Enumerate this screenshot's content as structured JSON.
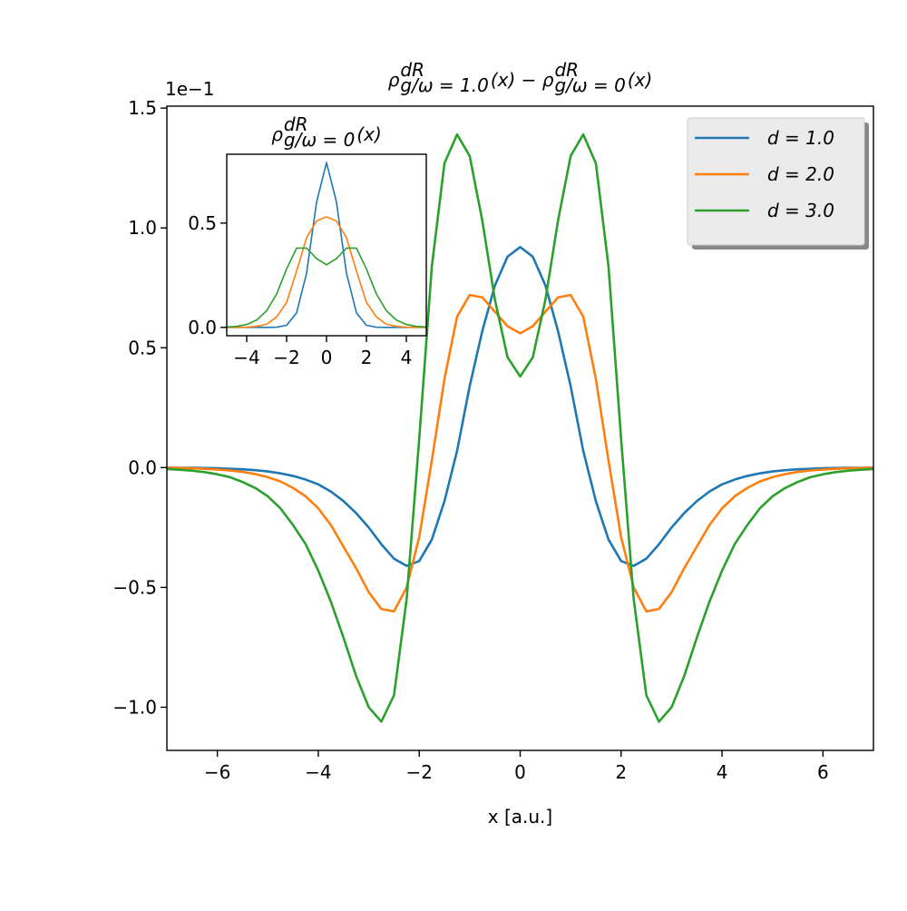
{
  "chart_data": [
    {
      "type": "line",
      "title": [
        {
          "base": "ρ",
          "sup": "dR",
          "sub": "g/ω = 1.0"
        },
        {
          "base": "(x) − ρ",
          "sup": "dR",
          "sub": "g/ω = 0"
        },
        {
          "base": "(x)"
        }
      ],
      "xlabel": "x [a.u.]",
      "offset_text": "1e−1",
      "legend": "upper right",
      "xlim": [
        -7,
        7
      ],
      "ylim": [
        -1.18,
        1.508
      ],
      "xticks": [
        {
          "value": -6,
          "label": "−6"
        },
        {
          "value": -4,
          "label": "−4"
        },
        {
          "value": -2,
          "label": "−2"
        },
        0,
        2,
        4,
        6
      ],
      "yticks": [
        {
          "value": -1.0,
          "label": "−1.0"
        },
        {
          "value": -0.5,
          "label": "−0.5"
        },
        {
          "value": 0,
          "label": "0.0"
        },
        0.5,
        {
          "value": 1.0,
          "label": "1.0"
        },
        1.5
      ],
      "x": [
        -7,
        -6.75,
        -6.5,
        -6.25,
        -6,
        -5.75,
        -5.5,
        -5.25,
        -5,
        -4.75,
        -4.5,
        -4.25,
        -4,
        -3.75,
        -3.5,
        -3.25,
        -3,
        -2.75,
        -2.5,
        -2.25,
        -2,
        -1.75,
        -1.5,
        -1.25,
        -1,
        -0.75,
        -0.5,
        -0.25,
        0,
        0.25,
        0.5,
        0.75,
        1,
        1.25,
        1.5,
        1.75,
        2,
        2.25,
        2.5,
        2.75,
        3,
        3.25,
        3.5,
        3.75,
        4,
        4.25,
        4.5,
        4.75,
        5,
        5.25,
        5.5,
        5.75,
        6,
        6.25,
        6.5,
        6.75,
        7
      ],
      "series": [
        {
          "name": "d = 1.0",
          "color": "#1f77b4",
          "values": [
            0,
            -0.001,
            -0.001,
            -0.002,
            -0.003,
            -0.005,
            -0.007,
            -0.011,
            -0.016,
            -0.024,
            -0.035,
            -0.05,
            -0.07,
            -0.1,
            -0.14,
            -0.19,
            -0.25,
            -0.32,
            -0.38,
            -0.41,
            -0.39,
            -0.3,
            -0.14,
            0.07,
            0.34,
            0.57,
            0.76,
            0.88,
            0.92,
            0.88,
            0.76,
            0.57,
            0.34,
            0.07,
            -0.14,
            -0.3,
            -0.39,
            -0.41,
            -0.38,
            -0.32,
            -0.25,
            -0.19,
            -0.14,
            -0.1,
            -0.07,
            -0.05,
            -0.035,
            -0.024,
            -0.016,
            -0.011,
            -0.007,
            -0.005,
            -0.003,
            -0.002,
            -0.001,
            -0.001,
            0
          ]
        },
        {
          "name": "d = 2.0",
          "color": "#ff7f0e",
          "values": [
            -0.001,
            -0.002,
            -0.003,
            -0.005,
            -0.008,
            -0.012,
            -0.018,
            -0.027,
            -0.04,
            -0.058,
            -0.085,
            -0.12,
            -0.17,
            -0.24,
            -0.33,
            -0.42,
            -0.52,
            -0.59,
            -0.6,
            -0.5,
            -0.29,
            0.03,
            0.37,
            0.63,
            0.72,
            0.71,
            0.65,
            0.59,
            0.56,
            0.59,
            0.65,
            0.71,
            0.72,
            0.63,
            0.37,
            0.03,
            -0.29,
            -0.5,
            -0.6,
            -0.59,
            -0.52,
            -0.42,
            -0.33,
            -0.24,
            -0.17,
            -0.12,
            -0.085,
            -0.058,
            -0.04,
            -0.027,
            -0.018,
            -0.012,
            -0.008,
            -0.005,
            -0.003,
            -0.002,
            -0.001
          ]
        },
        {
          "name": "d = 3.0",
          "color": "#2ca02c",
          "values": [
            -0.006,
            -0.009,
            -0.013,
            -0.019,
            -0.028,
            -0.04,
            -0.06,
            -0.085,
            -0.12,
            -0.17,
            -0.24,
            -0.32,
            -0.43,
            -0.56,
            -0.71,
            -0.87,
            -1.0,
            -1.06,
            -0.95,
            -0.55,
            0.12,
            0.84,
            1.27,
            1.39,
            1.3,
            1.03,
            0.7,
            0.46,
            0.38,
            0.46,
            0.7,
            1.03,
            1.3,
            1.39,
            1.27,
            0.84,
            0.12,
            -0.55,
            -0.95,
            -1.06,
            -1.0,
            -0.87,
            -0.71,
            -0.56,
            -0.43,
            -0.32,
            -0.24,
            -0.17,
            -0.12,
            -0.085,
            -0.06,
            -0.04,
            -0.028,
            -0.019,
            -0.013,
            -0.009,
            -0.006
          ]
        }
      ]
    },
    {
      "type": "line",
      "title": [
        {
          "base": "ρ",
          "sup": "dR",
          "sub": "g/ω = 0"
        },
        {
          "base": "(x)"
        }
      ],
      "xlim": [
        -5,
        5
      ],
      "ylim": [
        -0.04,
        0.83
      ],
      "xticks": [
        {
          "value": -4,
          "label": "−4"
        },
        {
          "value": -2,
          "label": "−2"
        },
        0,
        2,
        4
      ],
      "yticks": [
        {
          "value": 0,
          "label": "0.0"
        },
        0.5
      ],
      "x": [
        -5,
        -4.5,
        -4,
        -3.5,
        -3,
        -2.5,
        -2,
        -1.5,
        -1,
        -0.5,
        0,
        0.5,
        1,
        1.5,
        2,
        2.5,
        3,
        3.5,
        4,
        4.5,
        5
      ],
      "series": [
        {
          "color": "#1f77b4",
          "values": [
            0,
            0,
            0,
            0,
            0,
            0.001,
            0.01,
            0.07,
            0.26,
            0.6,
            0.79,
            0.6,
            0.26,
            0.07,
            0.01,
            0.001,
            0,
            0,
            0,
            0,
            0
          ]
        },
        {
          "color": "#ff7f0e",
          "values": [
            0,
            0,
            0.001,
            0.005,
            0.015,
            0.05,
            0.12,
            0.27,
            0.43,
            0.51,
            0.53,
            0.51,
            0.43,
            0.27,
            0.12,
            0.05,
            0.015,
            0.005,
            0.001,
            0,
            0
          ]
        },
        {
          "color": "#2ca02c",
          "values": [
            0.002,
            0.005,
            0.014,
            0.035,
            0.08,
            0.16,
            0.28,
            0.38,
            0.38,
            0.33,
            0.3,
            0.33,
            0.38,
            0.38,
            0.28,
            0.16,
            0.08,
            0.035,
            0.014,
            0.005,
            0.002
          ]
        }
      ]
    }
  ]
}
